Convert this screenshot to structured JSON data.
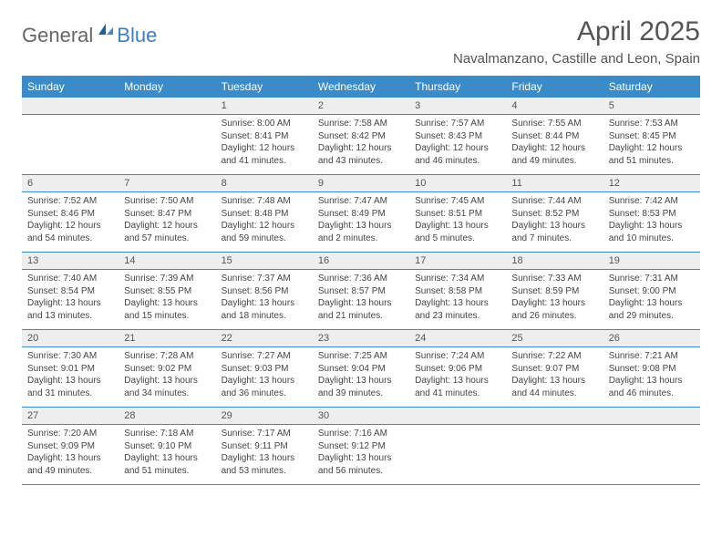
{
  "brand": {
    "part1": "General",
    "part2": "Blue"
  },
  "title": "April 2025",
  "location": "Navalmanzano, Castille and Leon, Spain",
  "colors": {
    "header_bg": "#3b8bc9",
    "header_text": "#ffffff",
    "daynum_bg": "#eeeeee",
    "row_divider": "#3b8bc9",
    "logo_blue": "#3b7fc4",
    "logo_gray": "#666666"
  },
  "day_headers": [
    "Sunday",
    "Monday",
    "Tuesday",
    "Wednesday",
    "Thursday",
    "Friday",
    "Saturday"
  ],
  "weeks": [
    [
      null,
      null,
      {
        "n": "1",
        "sr": "Sunrise: 8:00 AM",
        "ss": "Sunset: 8:41 PM",
        "d1": "Daylight: 12 hours",
        "d2": "and 41 minutes."
      },
      {
        "n": "2",
        "sr": "Sunrise: 7:58 AM",
        "ss": "Sunset: 8:42 PM",
        "d1": "Daylight: 12 hours",
        "d2": "and 43 minutes."
      },
      {
        "n": "3",
        "sr": "Sunrise: 7:57 AM",
        "ss": "Sunset: 8:43 PM",
        "d1": "Daylight: 12 hours",
        "d2": "and 46 minutes."
      },
      {
        "n": "4",
        "sr": "Sunrise: 7:55 AM",
        "ss": "Sunset: 8:44 PM",
        "d1": "Daylight: 12 hours",
        "d2": "and 49 minutes."
      },
      {
        "n": "5",
        "sr": "Sunrise: 7:53 AM",
        "ss": "Sunset: 8:45 PM",
        "d1": "Daylight: 12 hours",
        "d2": "and 51 minutes."
      }
    ],
    [
      {
        "n": "6",
        "sr": "Sunrise: 7:52 AM",
        "ss": "Sunset: 8:46 PM",
        "d1": "Daylight: 12 hours",
        "d2": "and 54 minutes."
      },
      {
        "n": "7",
        "sr": "Sunrise: 7:50 AM",
        "ss": "Sunset: 8:47 PM",
        "d1": "Daylight: 12 hours",
        "d2": "and 57 minutes."
      },
      {
        "n": "8",
        "sr": "Sunrise: 7:48 AM",
        "ss": "Sunset: 8:48 PM",
        "d1": "Daylight: 12 hours",
        "d2": "and 59 minutes."
      },
      {
        "n": "9",
        "sr": "Sunrise: 7:47 AM",
        "ss": "Sunset: 8:49 PM",
        "d1": "Daylight: 13 hours",
        "d2": "and 2 minutes."
      },
      {
        "n": "10",
        "sr": "Sunrise: 7:45 AM",
        "ss": "Sunset: 8:51 PM",
        "d1": "Daylight: 13 hours",
        "d2": "and 5 minutes."
      },
      {
        "n": "11",
        "sr": "Sunrise: 7:44 AM",
        "ss": "Sunset: 8:52 PM",
        "d1": "Daylight: 13 hours",
        "d2": "and 7 minutes."
      },
      {
        "n": "12",
        "sr": "Sunrise: 7:42 AM",
        "ss": "Sunset: 8:53 PM",
        "d1": "Daylight: 13 hours",
        "d2": "and 10 minutes."
      }
    ],
    [
      {
        "n": "13",
        "sr": "Sunrise: 7:40 AM",
        "ss": "Sunset: 8:54 PM",
        "d1": "Daylight: 13 hours",
        "d2": "and 13 minutes."
      },
      {
        "n": "14",
        "sr": "Sunrise: 7:39 AM",
        "ss": "Sunset: 8:55 PM",
        "d1": "Daylight: 13 hours",
        "d2": "and 15 minutes."
      },
      {
        "n": "15",
        "sr": "Sunrise: 7:37 AM",
        "ss": "Sunset: 8:56 PM",
        "d1": "Daylight: 13 hours",
        "d2": "and 18 minutes."
      },
      {
        "n": "16",
        "sr": "Sunrise: 7:36 AM",
        "ss": "Sunset: 8:57 PM",
        "d1": "Daylight: 13 hours",
        "d2": "and 21 minutes."
      },
      {
        "n": "17",
        "sr": "Sunrise: 7:34 AM",
        "ss": "Sunset: 8:58 PM",
        "d1": "Daylight: 13 hours",
        "d2": "and 23 minutes."
      },
      {
        "n": "18",
        "sr": "Sunrise: 7:33 AM",
        "ss": "Sunset: 8:59 PM",
        "d1": "Daylight: 13 hours",
        "d2": "and 26 minutes."
      },
      {
        "n": "19",
        "sr": "Sunrise: 7:31 AM",
        "ss": "Sunset: 9:00 PM",
        "d1": "Daylight: 13 hours",
        "d2": "and 29 minutes."
      }
    ],
    [
      {
        "n": "20",
        "sr": "Sunrise: 7:30 AM",
        "ss": "Sunset: 9:01 PM",
        "d1": "Daylight: 13 hours",
        "d2": "and 31 minutes."
      },
      {
        "n": "21",
        "sr": "Sunrise: 7:28 AM",
        "ss": "Sunset: 9:02 PM",
        "d1": "Daylight: 13 hours",
        "d2": "and 34 minutes."
      },
      {
        "n": "22",
        "sr": "Sunrise: 7:27 AM",
        "ss": "Sunset: 9:03 PM",
        "d1": "Daylight: 13 hours",
        "d2": "and 36 minutes."
      },
      {
        "n": "23",
        "sr": "Sunrise: 7:25 AM",
        "ss": "Sunset: 9:04 PM",
        "d1": "Daylight: 13 hours",
        "d2": "and 39 minutes."
      },
      {
        "n": "24",
        "sr": "Sunrise: 7:24 AM",
        "ss": "Sunset: 9:06 PM",
        "d1": "Daylight: 13 hours",
        "d2": "and 41 minutes."
      },
      {
        "n": "25",
        "sr": "Sunrise: 7:22 AM",
        "ss": "Sunset: 9:07 PM",
        "d1": "Daylight: 13 hours",
        "d2": "and 44 minutes."
      },
      {
        "n": "26",
        "sr": "Sunrise: 7:21 AM",
        "ss": "Sunset: 9:08 PM",
        "d1": "Daylight: 13 hours",
        "d2": "and 46 minutes."
      }
    ],
    [
      {
        "n": "27",
        "sr": "Sunrise: 7:20 AM",
        "ss": "Sunset: 9:09 PM",
        "d1": "Daylight: 13 hours",
        "d2": "and 49 minutes."
      },
      {
        "n": "28",
        "sr": "Sunrise: 7:18 AM",
        "ss": "Sunset: 9:10 PM",
        "d1": "Daylight: 13 hours",
        "d2": "and 51 minutes."
      },
      {
        "n": "29",
        "sr": "Sunrise: 7:17 AM",
        "ss": "Sunset: 9:11 PM",
        "d1": "Daylight: 13 hours",
        "d2": "and 53 minutes."
      },
      {
        "n": "30",
        "sr": "Sunrise: 7:16 AM",
        "ss": "Sunset: 9:12 PM",
        "d1": "Daylight: 13 hours",
        "d2": "and 56 minutes."
      },
      null,
      null,
      null
    ]
  ]
}
